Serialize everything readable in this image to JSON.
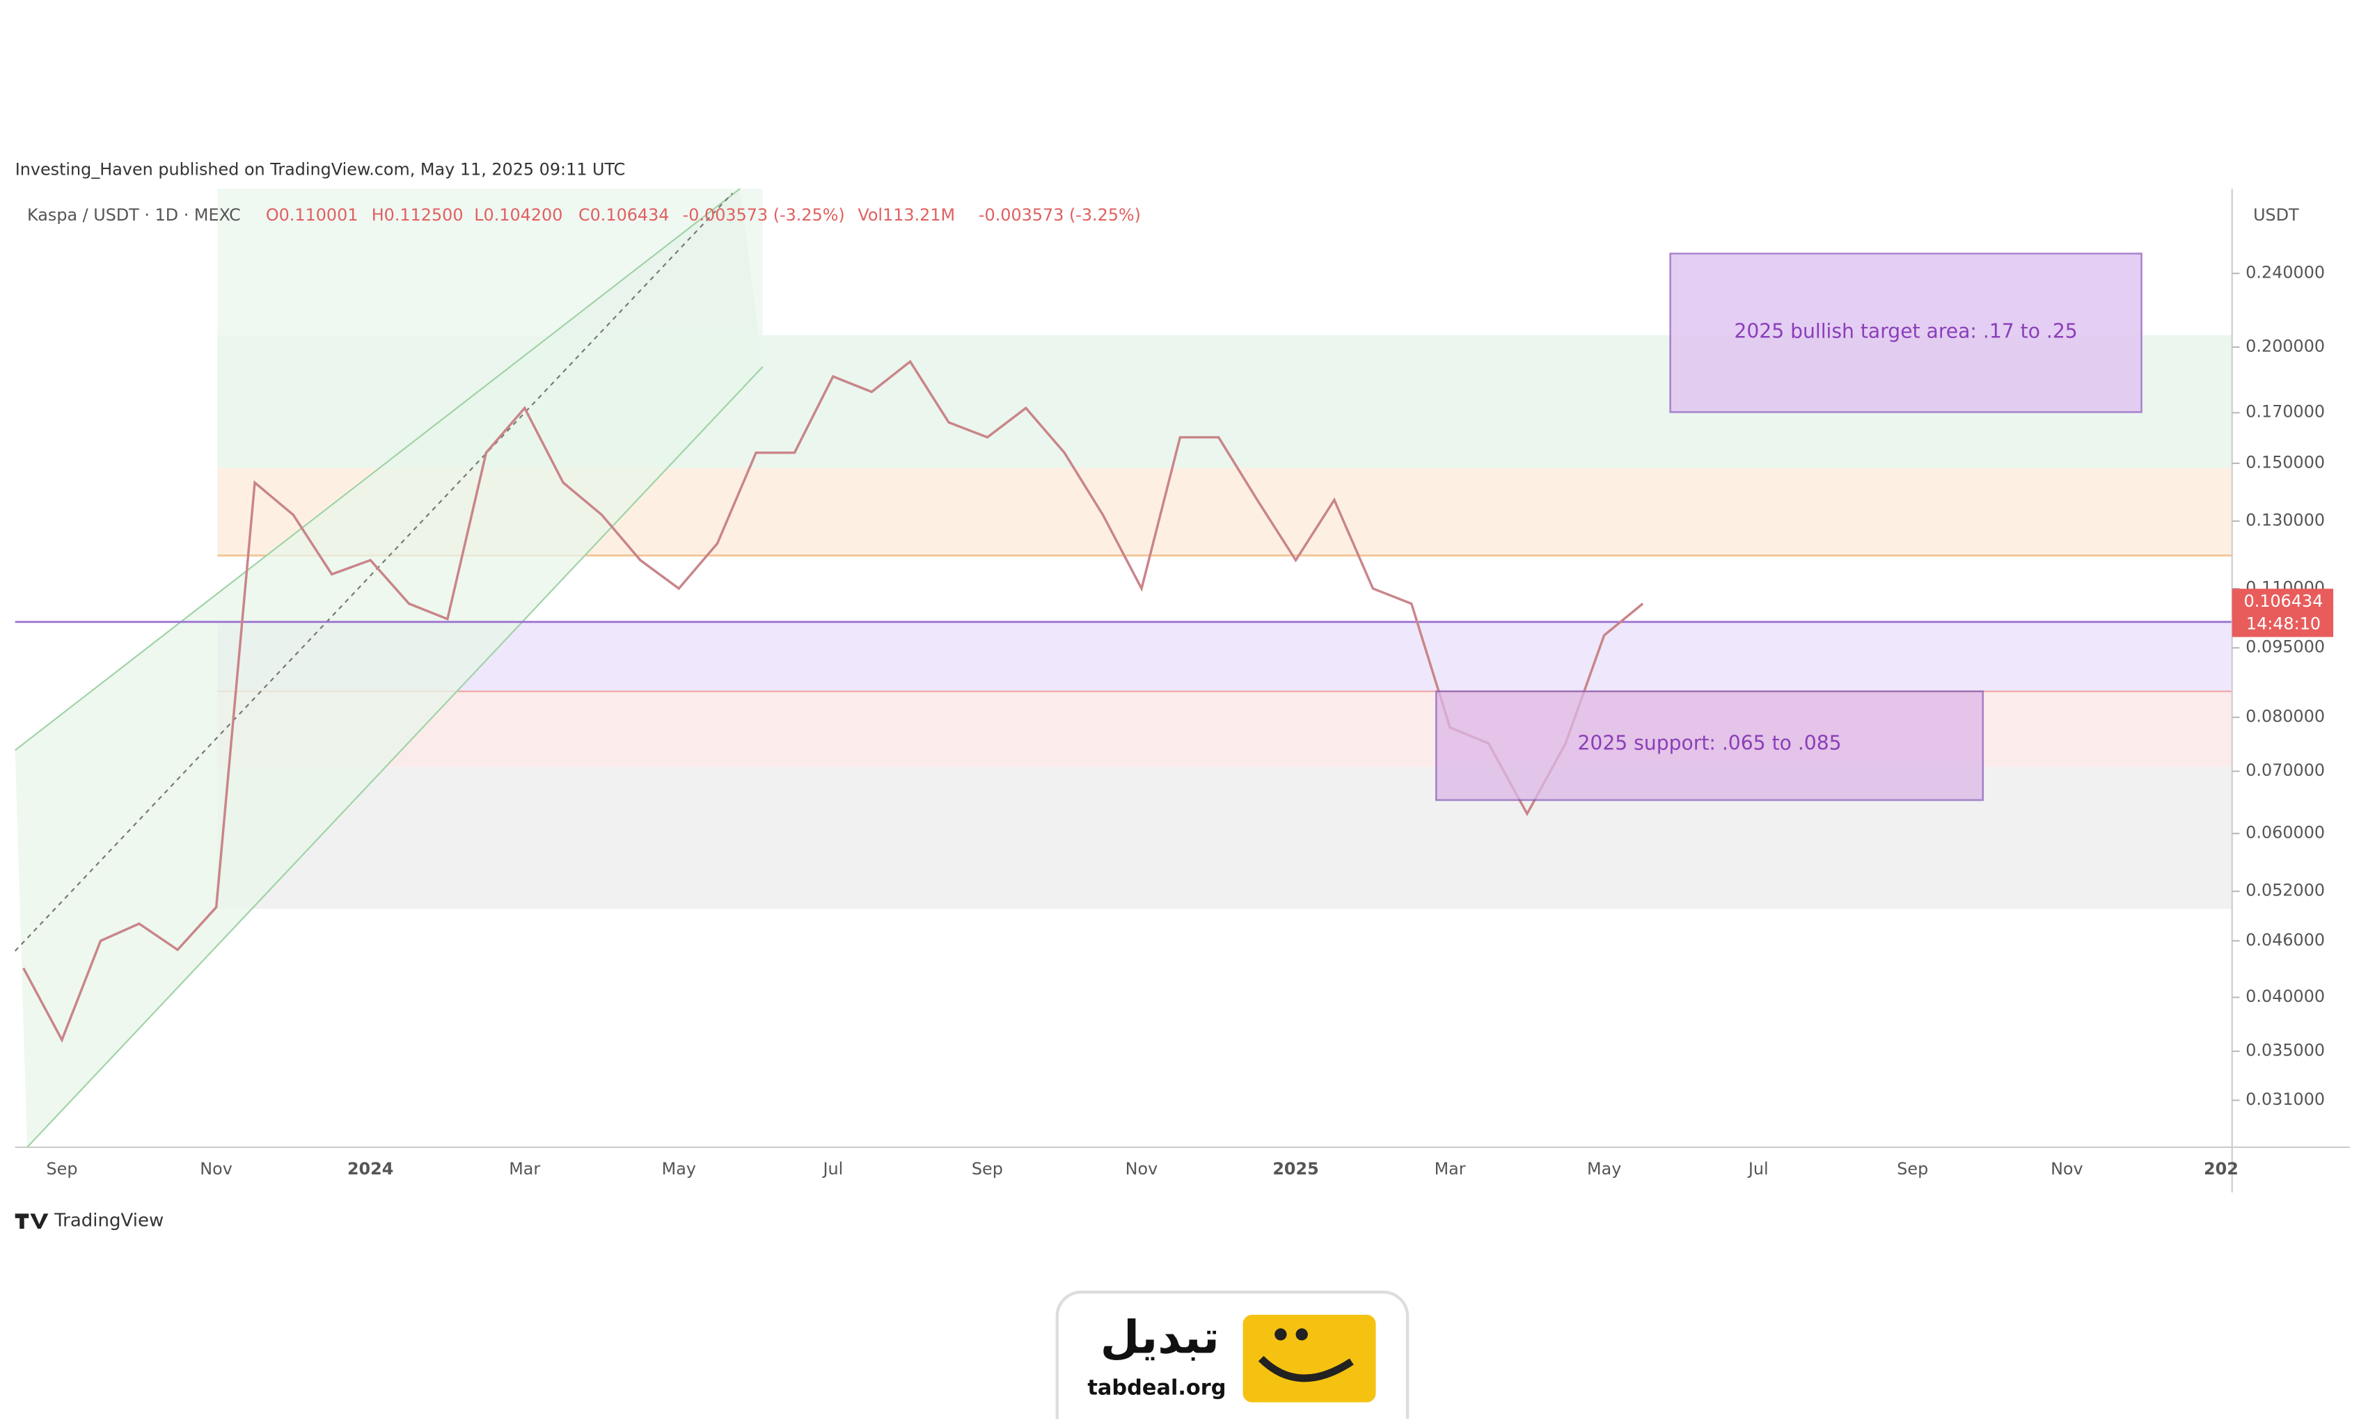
{
  "header": {
    "attribution": "Investing_Haven published on TradingView.com, May 11, 2025 09:11 UTC",
    "symbol": "Kaspa / USDT · 1D · MEXC",
    "ohlc": [
      "O0.110001",
      "H0.112500",
      "L0.104200",
      "C0.106434",
      "-0.003573 (-3.25%)"
    ],
    "volume": [
      "Vol113.21M",
      "-0.003573 (-3.25%)"
    ]
  },
  "chart_data": {
    "type": "line",
    "axis_unit": "USDT",
    "log_scale": true,
    "ylim": [
      0.0276,
      0.296
    ],
    "yticks": [
      {
        "value": 0.24,
        "label": "0.240000"
      },
      {
        "value": 0.2,
        "label": "0.200000"
      },
      {
        "value": 0.17,
        "label": "0.170000"
      },
      {
        "value": 0.15,
        "label": "0.150000"
      },
      {
        "value": 0.13,
        "label": "0.130000"
      },
      {
        "value": 0.11,
        "label": "0.110000"
      },
      {
        "value": 0.095,
        "label": "0.095000"
      },
      {
        "value": 0.08,
        "label": "0.080000"
      },
      {
        "value": 0.07,
        "label": "0.070000"
      },
      {
        "value": 0.06,
        "label": "0.060000"
      },
      {
        "value": 0.052,
        "label": "0.052000"
      },
      {
        "value": 0.046,
        "label": "0.046000"
      },
      {
        "value": 0.04,
        "label": "0.040000"
      },
      {
        "value": 0.035,
        "label": "0.035000"
      },
      {
        "value": 0.031,
        "label": "0.031000"
      }
    ],
    "categories": [
      null,
      "Sep",
      null,
      null,
      null,
      "Nov",
      null,
      null,
      null,
      "2024",
      null,
      null,
      null,
      "Mar",
      null,
      null,
      null,
      "May",
      null,
      null,
      null,
      "Jul",
      null,
      null,
      null,
      "Sep",
      null,
      null,
      null,
      "Nov",
      null,
      null,
      null,
      "2025",
      null,
      null,
      null,
      "Mar",
      null,
      null,
      null,
      "May",
      null,
      null,
      null,
      "Jul",
      null,
      null,
      null,
      "Sep",
      null,
      null,
      null,
      "Nov",
      null,
      null,
      null,
      "202"
    ],
    "series": [
      {
        "name": "Kaspa / USDT",
        "color": "#c98589",
        "values": [
          0.043,
          0.036,
          0.046,
          0.048,
          0.045,
          0.05,
          0.143,
          0.132,
          0.114,
          0.118,
          0.106,
          0.102,
          0.154,
          0.172,
          0.143,
          0.132,
          0.118,
          0.11,
          0.123,
          0.154,
          0.154,
          0.186,
          0.179,
          0.193,
          0.166,
          0.16,
          0.172,
          0.154,
          0.132,
          0.11,
          0.16,
          0.16,
          0.137,
          0.118,
          0.137,
          0.11,
          0.106,
          0.078,
          0.075,
          0.063,
          0.075,
          0.098,
          0.106,
          null,
          null,
          null,
          null,
          null,
          null,
          null,
          null,
          null,
          null,
          null,
          null,
          null,
          null,
          null
        ]
      }
    ],
    "last_price": "0.106434",
    "countdown": "14:48:10",
    "annotations": [
      "2025 bullish target area: .17 to .25",
      "2025 support: .065 to .085"
    ]
  },
  "footer": "TradingView",
  "logo": {
    "name": "تبدیل",
    "domain": "tabdeal.org"
  }
}
